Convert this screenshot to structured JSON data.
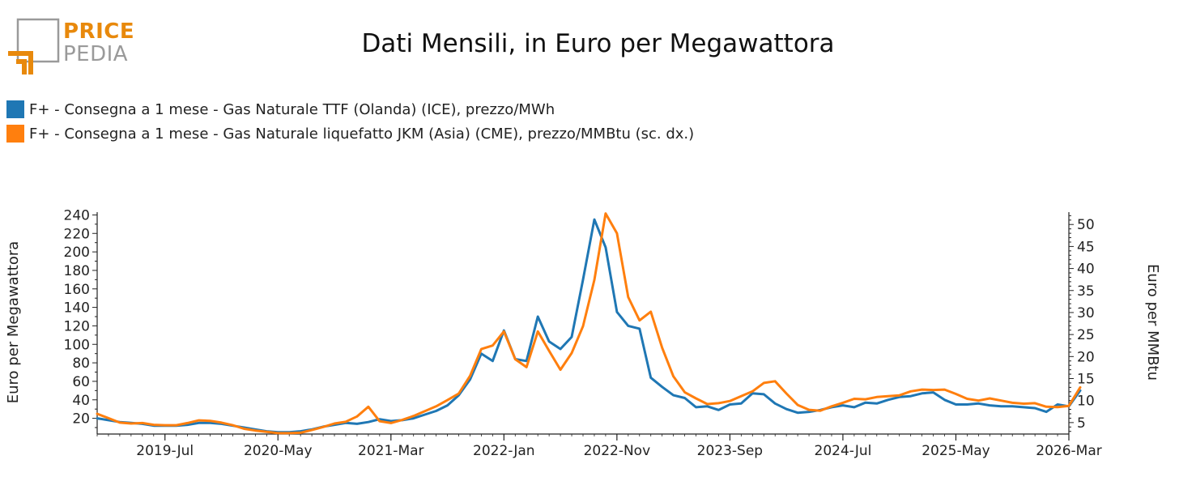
{
  "header": {
    "logo_line1": "PRICE",
    "logo_line2": "PEDIA"
  },
  "colors": {
    "ttf": "#1f77b4",
    "jkm": "#ff7f0e",
    "logo_orange": "#e8890c",
    "logo_gray": "#9a9a9a"
  },
  "chart_data": {
    "type": "line",
    "title": "Dati Mensili, in Euro per Megawattora",
    "ylabel_left": "Euro per Megawattora",
    "ylabel_right": "Euro per MMBtu",
    "ylim_left": [
      3,
      243
    ],
    "yticks_left": [
      20,
      40,
      60,
      80,
      100,
      120,
      140,
      160,
      180,
      200,
      220,
      240
    ],
    "ylim_right": [
      2.4,
      52.8
    ],
    "yticks_right": [
      5,
      10,
      15,
      20,
      25,
      30,
      35,
      40,
      45,
      50
    ],
    "x_tick_labels": [
      "2019-Jul",
      "2020-May",
      "2021-Mar",
      "2022-Jan",
      "2022-Nov",
      "2023-Sep",
      "2024-Jul",
      "2025-May",
      "2026-Mar"
    ],
    "x_start": "2019-01",
    "x_end": "2026-03",
    "legend_position": "top-left",
    "series": [
      {
        "name": "F+ - Consegna a 1 mese - Gas Naturale TTF (Olanda) (ICE), prezzo/MWh",
        "axis": "left",
        "values": [
          20,
          18,
          16,
          15,
          14,
          12,
          12,
          12,
          13,
          15,
          15,
          14,
          12,
          10,
          8,
          6,
          5,
          5,
          6,
          8,
          11,
          13,
          15,
          14,
          16,
          19,
          17,
          18,
          20,
          24,
          28,
          34,
          45,
          62,
          90,
          82,
          115,
          84,
          82,
          130,
          103,
          95,
          108,
          170,
          235,
          205,
          135,
          120,
          117,
          64,
          54,
          45,
          42,
          32,
          33,
          29,
          35,
          36,
          47,
          46,
          36,
          30,
          26,
          27,
          29,
          32,
          34,
          32,
          37,
          36,
          40,
          43,
          44,
          47,
          48,
          40,
          35,
          35,
          36,
          34,
          33,
          33,
          32,
          31,
          27,
          35,
          33,
          50
        ]
      },
      {
        "name": "F+ - Consegna a 1 mese - Gas Naturale liquefatto JKM (Asia) (CME), prezzo/MMBtu (sc. dx.)",
        "axis": "right",
        "values": [
          7.0,
          6.0,
          5.0,
          4.8,
          4.9,
          4.5,
          4.4,
          4.4,
          4.9,
          5.5,
          5.4,
          5.0,
          4.4,
          3.6,
          3.2,
          2.9,
          2.6,
          2.6,
          2.7,
          3.3,
          4.0,
          4.8,
          5.2,
          6.4,
          8.6,
          5.3,
          4.9,
          5.6,
          6.5,
          7.6,
          8.7,
          10.1,
          11.6,
          15.6,
          21.7,
          22.5,
          25.7,
          19.4,
          17.6,
          25.7,
          21.3,
          17.0,
          20.8,
          26.9,
          37.4,
          52.5,
          48.0,
          33.5,
          28.2,
          30.2,
          22.0,
          15.5,
          11.9,
          10.5,
          9.2,
          9.4,
          9.9,
          11.0,
          12.1,
          14.0,
          14.4,
          11.6,
          9.0,
          7.9,
          7.7,
          8.7,
          9.5,
          10.4,
          10.3,
          10.8,
          11.0,
          11.2,
          12.1,
          12.5,
          12.4,
          12.5,
          11.5,
          10.4,
          10.0,
          10.5,
          10.0,
          9.5,
          9.3,
          9.4,
          8.6,
          8.5,
          8.8,
          13.0
        ]
      }
    ]
  }
}
